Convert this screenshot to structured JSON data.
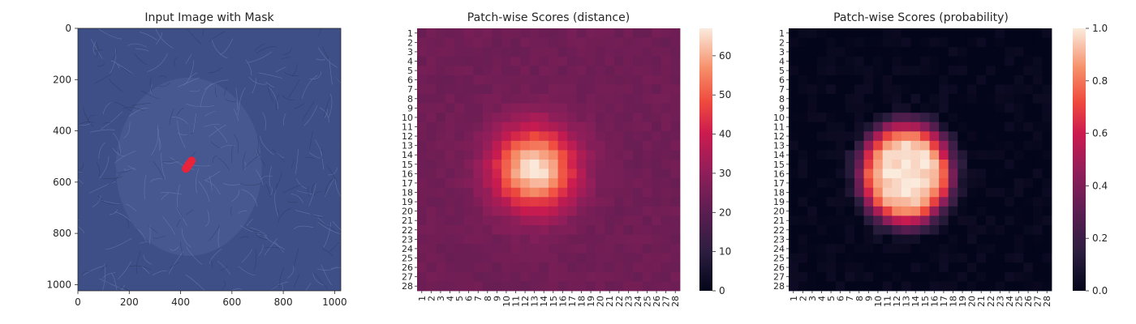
{
  "chart_data": [
    {
      "type": "image",
      "title": "Input Image with Mask",
      "xlim": [
        0,
        1024
      ],
      "ylim": [
        1024,
        0
      ],
      "xticks": [
        0,
        200,
        400,
        600,
        800,
        1000
      ],
      "yticks": [
        0,
        200,
        400,
        600,
        800,
        1000
      ],
      "image": {
        "texture": "leather",
        "base_color": "#3d4f86"
      },
      "mask": {
        "x_center": 432,
        "y_center": 532,
        "length": 70,
        "width": 32,
        "color": "#e8233a"
      }
    },
    {
      "type": "heatmap",
      "title": "Patch-wise Scores (distance)",
      "rows": 28,
      "cols": 28,
      "tick_labels": [
        "1",
        "2",
        "3",
        "4",
        "5",
        "6",
        "7",
        "8",
        "9",
        "10",
        "11",
        "12",
        "13",
        "14",
        "15",
        "16",
        "17",
        "18",
        "19",
        "20",
        "21",
        "22",
        "23",
        "24",
        "25",
        "26",
        "27",
        "28"
      ],
      "colorbar": {
        "min": 0,
        "max": 67,
        "ticks": [
          0,
          10,
          20,
          30,
          40,
          50,
          60
        ]
      },
      "colormap": "rocket",
      "blob": {
        "center_row": 15.5,
        "center_col": 13.0,
        "peak": 67,
        "background": 24
      }
    },
    {
      "type": "heatmap",
      "title": "Patch-wise Scores (probability)",
      "rows": 28,
      "cols": 28,
      "tick_labels": [
        "1",
        "2",
        "3",
        "4",
        "5",
        "6",
        "7",
        "8",
        "9",
        "10",
        "11",
        "12",
        "13",
        "14",
        "15",
        "16",
        "17",
        "18",
        "19",
        "20",
        "21",
        "22",
        "23",
        "24",
        "25",
        "26",
        "27",
        "28"
      ],
      "colorbar": {
        "min": 0.0,
        "max": 1.0,
        "ticks": [
          "0.0",
          "0.2",
          "0.4",
          "0.6",
          "0.8",
          "1.0"
        ]
      },
      "colormap": "rocket",
      "blob": {
        "center_row": 16.0,
        "center_col": 13.0,
        "peak": 1.0,
        "background": 0.0
      }
    }
  ]
}
